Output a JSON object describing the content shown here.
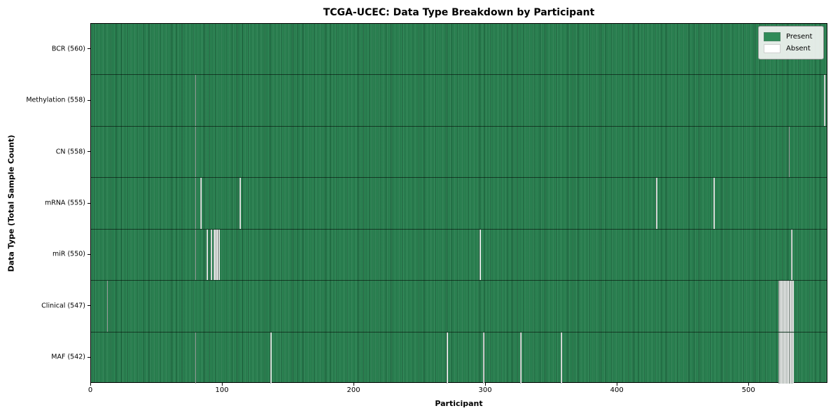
{
  "chart_data": {
    "type": "heatmap",
    "title": "TCGA-UCEC: Data Type Breakdown by Participant",
    "xlabel": "Participant",
    "ylabel": "Data Type (Total Sample Count)",
    "x_ticks": [
      0,
      100,
      200,
      300,
      400,
      500
    ],
    "x_range": [
      0,
      560
    ],
    "n_participants": 560,
    "grid": false,
    "legend_position": "upper right",
    "colors": {
      "present": "#2e8b57",
      "absent": "#ffffff"
    },
    "legend": [
      {
        "label": "Present",
        "color": "#2e8b57"
      },
      {
        "label": "Absent",
        "color": "#ffffff"
      }
    ],
    "rows": [
      {
        "label": "BCR (560)",
        "data_type": "BCR",
        "present_count": 560,
        "absent_participants": []
      },
      {
        "label": "Methylation (558)",
        "data_type": "Methylation",
        "present_count": 558,
        "absent_participants": [
          79,
          557
        ]
      },
      {
        "label": "CN (558)",
        "data_type": "CN",
        "present_count": 558,
        "absent_participants": [
          79,
          530
        ]
      },
      {
        "label": "mRNA (555)",
        "data_type": "mRNA",
        "present_count": 555,
        "absent_participants": [
          79,
          83,
          113,
          429,
          473
        ]
      },
      {
        "label": "miR (550)",
        "data_type": "miR",
        "present_count": 550,
        "absent_participants": [
          79,
          88,
          91,
          93,
          94,
          95,
          96,
          97,
          295,
          532
        ]
      },
      {
        "label": "Clinical (547)",
        "data_type": "Clinical",
        "present_count": 547,
        "absent_participants": [
          12,
          522,
          523,
          524,
          525,
          526,
          527,
          528,
          529,
          530,
          531,
          532,
          533
        ]
      },
      {
        "label": "MAF (542)",
        "data_type": "MAF",
        "present_count": 542,
        "absent_participants": [
          79,
          136,
          270,
          298,
          326,
          357,
          522,
          523,
          524,
          525,
          526,
          527,
          528,
          529,
          530,
          531,
          532,
          533
        ]
      }
    ]
  }
}
